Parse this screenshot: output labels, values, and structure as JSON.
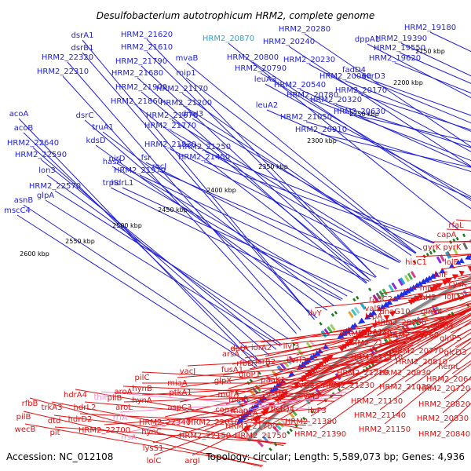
{
  "title": "Desulfobacterium autotrophicum HRM2, complete genome",
  "accession": "Accession: NC_012108",
  "summary": "Topology: circular; Length: 5,589,073 bp; Genes: 4,936",
  "colors": {
    "forward_label": "#1f1fd6",
    "reverse_label": "#e01010",
    "highlight_cyan": "#20a8d8",
    "pink": "#f28ccf",
    "ring": "#888888",
    "forward_arrow": "#1e2fe8",
    "reverse_arrow": "#ee1010"
  },
  "kbp_ticks": [
    "2150 kbp",
    "2200 kbp",
    "2250 kbp",
    "2300 kbp",
    "2350 kbp",
    "2400 kbp",
    "2450 kbp",
    "2500 kbp",
    "2550 kbp",
    "2600 kbp"
  ],
  "forward_genes": [
    "HRM2_19180",
    "HRM2_19390",
    "HRM2_19550",
    "HRM2_19620",
    "HRM2_20280",
    "HRM2_20240",
    "dppA1",
    "HRM2_20870",
    "HRM2_20800",
    "HRM2_20230",
    "HRM2_20790",
    "fadD4",
    "HRM2_20060",
    "xerD3",
    "HRM2_20540",
    "HRM2_20170",
    "HRM2_20780",
    "HRM2_20320",
    "HRM2_20630",
    "HRM2_20910",
    "HRM2_21050",
    "leuA3",
    "leuA2",
    "mvaB",
    "mip1",
    "HRM2_21620",
    "HRM2_21610",
    "HRM2_21790",
    "HRM2_21680",
    "HRM2_21900",
    "HRM2_21860",
    "HRM2_21170",
    "HRM2_21200",
    "HRM2_21670",
    "HRM2_21770",
    "dnaJ3",
    "HRM2_21250",
    "HRM2_21830",
    "HRM2_21450",
    "HRM2_21970",
    "dsrA1",
    "dsrB1",
    "HRM2_22320",
    "HRM2_22310",
    "dsrC",
    "truA1",
    "kdsD",
    "nirD",
    "fsr",
    "recJ",
    "hasA",
    "trpS",
    "hdrL1",
    "acoA",
    "acoB",
    "HRM2_22640",
    "HRM2_22590",
    "lon3",
    "HRM2_22570",
    "glpA",
    "asnB",
    "mscC4"
  ],
  "reverse_genes": [
    "rfaL",
    "capA",
    "gyrK",
    "pyrK",
    "hisC1",
    "lolE",
    "lolF",
    "cysK",
    "lolD2",
    "mpl",
    "glnH2",
    "radC2",
    "valS",
    "lepA",
    "dnaG10",
    "glnP4",
    "HRM2_20750",
    "glnQ4",
    "HRM2_20760",
    "glnP5",
    "uspA1",
    "HRM2_20770",
    "glcD3",
    "HRM2_21100",
    "HRM2_20810",
    "hemL",
    "HRM2_21240",
    "HRM2_21110",
    "HRM2_20930",
    "HRM2_20640",
    "HRM2_21030",
    "HRM2_20720",
    "ilvY",
    "HRM2_21220",
    "HRM2_21230",
    "HRM2_20820",
    "HRM2_21130",
    "HRM2_20830",
    "HRM2_21140",
    "HRM2_21150",
    "HRM2_20840",
    "HRM2_21380",
    "HRM2_21390",
    "ilvF3",
    "ilvG3",
    "ilvM3",
    "ilvH3",
    "ilvJ3",
    "iorA2",
    "iorB2",
    "rfbD",
    "glgP1",
    "paaK1",
    "dctP4",
    "dctQ4",
    "HRM2_21700",
    "HRM2_21750",
    "datA",
    "arsA",
    "fusA1",
    "glpX",
    "murA",
    "comE",
    "vacJ",
    "miaA",
    "ptkA1",
    "aspC3",
    "HRM2_22010",
    "HRM2_22150",
    "argI",
    "HRM2_22340",
    "pilC",
    "hynB",
    "hynA",
    "hynC",
    "lysS1",
    "lolC",
    "pilB",
    "aroA",
    "aroL",
    "rrfA",
    "rrsA",
    "thiP",
    "hdrA4",
    "hdrL2",
    "hdrD2",
    "HRM2_22700",
    "trkA3",
    "dtd",
    "pit",
    "rfbB",
    "pilB",
    "wecB",
    "miaB",
    "map",
    "cstA"
  ]
}
